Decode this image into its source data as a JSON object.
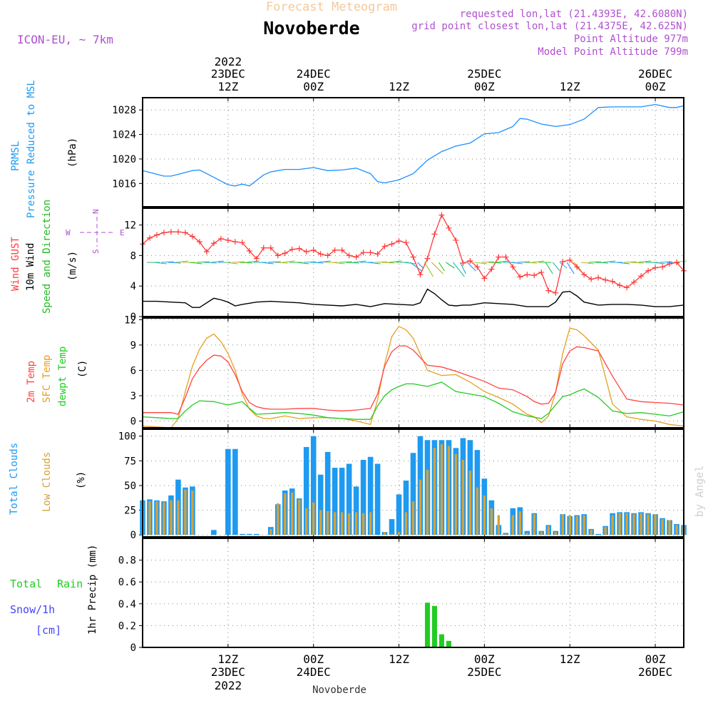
{
  "header": {
    "product_title": "Forecast Meteogram",
    "location": "Novoberde",
    "model": "ICON-EU, ~ 7km",
    "requested_point": "requested lon,lat (21.4393E, 42.6080N)",
    "grid_point": "grid point closest lon,lat (21.4375E, 42.625N)",
    "point_altitude": "Point Altitude 977m",
    "model_altitude": "Model Point Altitude 799m",
    "watermark": "by Angel",
    "footer_location": "Novoberde"
  },
  "colors": {
    "pressure": "#1e90ff",
    "gust": "#ff3b3b",
    "wind": "#000000",
    "dir": "#22bb22",
    "temp2m": "#ff4444",
    "sfc": "#e5a020",
    "dewpt": "#22cc22",
    "total_clouds": "#1e9af0",
    "low_clouds": "#d4a23a",
    "rain": "#22cc22",
    "snow": "#4444ff",
    "header_title": "#f5c89a",
    "info": "#b050d0"
  },
  "time_axis": {
    "top_labels": [
      {
        "line1": "2022",
        "line2": "23DEC",
        "line3": "12Z",
        "h": 12
      },
      {
        "line1": "",
        "line2": "24DEC",
        "line3": "00Z",
        "h": 24
      },
      {
        "line1": "",
        "line2": "",
        "line3": "12Z",
        "h": 36
      },
      {
        "line1": "",
        "line2": "25DEC",
        "line3": "00Z",
        "h": 48
      },
      {
        "line1": "",
        "line2": "",
        "line3": "12Z",
        "h": 60
      },
      {
        "line1": "",
        "line2": "26DEC",
        "line3": "00Z",
        "h": 72
      }
    ],
    "bottom_labels": [
      {
        "line1": "12Z",
        "line2": "23DEC",
        "line3": "2022",
        "h": 12
      },
      {
        "line1": "00Z",
        "line2": "24DEC",
        "line3": "",
        "h": 24
      },
      {
        "line1": "12Z",
        "line2": "",
        "line3": "",
        "h": 36
      },
      {
        "line1": "00Z",
        "line2": "25DEC",
        "line3": "",
        "h": 48
      },
      {
        "line1": "12Z",
        "line2": "",
        "line3": "",
        "h": 60
      },
      {
        "line1": "00Z",
        "line2": "26DEC",
        "line3": "",
        "h": 72
      }
    ]
  },
  "panels": {
    "pressure": {
      "label_a": "PRMSL",
      "label_b": "Pressure Reduced to MSL",
      "unit": "(hPa)",
      "y_ticks": [
        "1016",
        "1020",
        "1024",
        "1028"
      ]
    },
    "wind": {
      "label_gust": "Wind GUST",
      "label_wind": "10m Wind",
      "label_dir": "Speed and Direction",
      "unit": "(m/s)",
      "compass_n": "N",
      "compass_s": "S",
      "compass_w": "W",
      "compass_e": "E",
      "y_ticks": [
        "0",
        "4",
        "8",
        "12"
      ]
    },
    "temperature": {
      "label_t2m": "2m Temp",
      "label_sfc": "SFC Temp",
      "label_dew": "dewpt Temp",
      "unit": "(C)",
      "y_ticks": [
        "0",
        "3",
        "6",
        "9",
        "12"
      ]
    },
    "clouds": {
      "label_total": "Total Clouds",
      "label_low": "Low Clouds",
      "unit": "(%)",
      "y_ticks": [
        "0",
        "25",
        "50",
        "75",
        "100"
      ]
    },
    "precip": {
      "label_total": "Total",
      "label_rain": "Rain",
      "label_snow": "Snow/1h",
      "label_cm": "[cm]",
      "axis_label": "1hr Precip (mm)",
      "y_ticks": [
        "0",
        "0.2",
        "0.4",
        "0.6",
        "0.8"
      ]
    }
  },
  "chart_data": [
    {
      "type": "line",
      "title": "",
      "ylabel": "(hPa)",
      "ylim": [
        1012.2,
        1030.0
      ],
      "x_unit": "hours from 23DEC 00Z",
      "series": [
        {
          "name": "PRMSL",
          "x": [
            0,
            2,
            3,
            4,
            6,
            7,
            8,
            10,
            11,
            12,
            13,
            14,
            15,
            16,
            17,
            18,
            20,
            22,
            24,
            26,
            28,
            30,
            32,
            33,
            34,
            36,
            38,
            40,
            42,
            44,
            46,
            48,
            50,
            52,
            53,
            54,
            56,
            58,
            60,
            62,
            64,
            66,
            68,
            70,
            72,
            74,
            75,
            76
          ],
          "values": [
            1018.1,
            1017.5,
            1017.2,
            1017.2,
            1017.8,
            1018.1,
            1018.2,
            1017.0,
            1016.4,
            1015.8,
            1015.6,
            1015.9,
            1015.6,
            1016.5,
            1017.4,
            1017.9,
            1018.3,
            1018.3,
            1018.6,
            1018.1,
            1018.2,
            1018.5,
            1017.6,
            1016.3,
            1016.1,
            1016.6,
            1017.6,
            1019.8,
            1021.2,
            1022.1,
            1022.6,
            1024.1,
            1024.3,
            1025.3,
            1026.6,
            1026.5,
            1025.7,
            1025.3,
            1025.6,
            1026.5,
            1028.4,
            1028.5,
            1028.5,
            1028.5,
            1028.9,
            1028.4,
            1028.4,
            1028.7
          ]
        }
      ]
    },
    {
      "type": "line",
      "title": "",
      "ylabel": "(m/s)",
      "ylim": [
        0,
        14.2
      ],
      "x_unit": "hours from 23DEC 00Z",
      "series": [
        {
          "name": "Wind GUST",
          "x": [
            0,
            1,
            2,
            3,
            4,
            5,
            6,
            7,
            8,
            9,
            10,
            11,
            12,
            13,
            14,
            15,
            16,
            17,
            18,
            19,
            20,
            21,
            22,
            23,
            24,
            25,
            26,
            27,
            28,
            29,
            30,
            31,
            32,
            33,
            34,
            35,
            36,
            37,
            38,
            39,
            40,
            41,
            42,
            43,
            44,
            45,
            46,
            47,
            48,
            49,
            50,
            51,
            52,
            53,
            54,
            55,
            56,
            57,
            58,
            59,
            60,
            61,
            62,
            63,
            64,
            65,
            66,
            67,
            68,
            69,
            70,
            71,
            72,
            73,
            74,
            75,
            76
          ],
          "values": [
            9.5,
            10.3,
            10.7,
            11.0,
            11.1,
            11.1,
            11.0,
            10.5,
            9.8,
            8.5,
            9.6,
            10.2,
            10.0,
            9.8,
            9.7,
            8.6,
            7.6,
            9.0,
            9.0,
            8.0,
            8.3,
            8.8,
            8.9,
            8.5,
            8.7,
            8.2,
            8.0,
            8.7,
            8.7,
            8.0,
            7.8,
            8.4,
            8.4,
            8.2,
            9.2,
            9.5,
            9.9,
            9.7,
            7.8,
            5.5,
            7.6,
            10.8,
            13.3,
            11.6,
            10.0,
            7.0,
            7.3,
            6.5,
            5.0,
            6.2,
            7.8,
            7.8,
            6.5,
            5.2,
            5.5,
            5.4,
            5.8,
            3.4,
            3.1,
            7.2,
            7.4,
            6.5,
            5.5,
            4.9,
            5.1,
            4.8,
            4.6,
            4.1,
            3.8,
            4.5,
            5.3,
            6.0,
            6.4,
            6.5,
            6.9,
            7.1,
            6.0
          ]
        },
        {
          "name": "10m Wind",
          "x": [
            0,
            2,
            4,
            6,
            7,
            8,
            10,
            11,
            12,
            13,
            14,
            16,
            18,
            20,
            22,
            24,
            26,
            28,
            30,
            32,
            34,
            36,
            38,
            39,
            40,
            41,
            42,
            43,
            44,
            45,
            46,
            48,
            50,
            52,
            54,
            56,
            57,
            58,
            59,
            60,
            61,
            62,
            64,
            66,
            68,
            70,
            72,
            74,
            76
          ],
          "values": [
            2.0,
            2.0,
            1.9,
            1.8,
            1.2,
            1.2,
            2.4,
            2.2,
            1.9,
            1.4,
            1.6,
            1.9,
            2.0,
            1.9,
            1.8,
            1.6,
            1.5,
            1.4,
            1.6,
            1.3,
            1.7,
            1.6,
            1.5,
            1.8,
            3.6,
            3.0,
            2.2,
            1.5,
            1.4,
            1.5,
            1.5,
            1.8,
            1.7,
            1.6,
            1.3,
            1.3,
            1.3,
            1.9,
            3.2,
            3.3,
            2.7,
            1.9,
            1.5,
            1.6,
            1.6,
            1.5,
            1.3,
            1.3,
            1.5
          ]
        }
      ]
    },
    {
      "type": "line",
      "title": "",
      "ylabel": "(C)",
      "ylim": [
        -0.8,
        12.2
      ],
      "x_unit": "hours from 23DEC 00Z",
      "series": [
        {
          "name": "2m Temp",
          "x": [
            0,
            2,
            4,
            5,
            6,
            7,
            8,
            9,
            10,
            11,
            12,
            13,
            14,
            15,
            16,
            17,
            18,
            20,
            22,
            24,
            26,
            28,
            30,
            32,
            33,
            34,
            35,
            36,
            37,
            38,
            40,
            42,
            44,
            46,
            48,
            50,
            52,
            54,
            55,
            56,
            57,
            58,
            59,
            60,
            61,
            62,
            64,
            66,
            68,
            70,
            72,
            74,
            76
          ],
          "values": [
            1.0,
            1.0,
            1.0,
            0.8,
            2.8,
            5.0,
            6.3,
            7.2,
            7.8,
            7.7,
            7.0,
            5.5,
            3.5,
            2.2,
            1.7,
            1.5,
            1.4,
            1.4,
            1.5,
            1.5,
            1.3,
            1.2,
            1.3,
            1.5,
            3.2,
            6.5,
            8.2,
            8.9,
            8.9,
            8.4,
            6.6,
            6.4,
            5.9,
            5.3,
            4.7,
            3.9,
            3.7,
            2.9,
            2.3,
            2.0,
            2.1,
            3.4,
            6.8,
            8.3,
            8.8,
            8.7,
            8.3,
            5.3,
            2.6,
            2.3,
            2.2,
            2.1,
            1.9
          ]
        },
        {
          "name": "SFC Temp",
          "x": [
            0,
            2,
            4,
            5,
            6,
            7,
            8,
            9,
            10,
            11,
            12,
            13,
            14,
            15,
            16,
            17,
            18,
            20,
            22,
            24,
            26,
            28,
            30,
            32,
            33,
            34,
            35,
            36,
            37,
            38,
            40,
            42,
            44,
            46,
            48,
            50,
            52,
            54,
            55,
            56,
            57,
            58,
            59,
            60,
            61,
            62,
            64,
            66,
            68,
            70,
            72,
            74,
            76
          ],
          "values": [
            -0.6,
            -0.7,
            -0.8,
            0.3,
            3.5,
            6.5,
            8.5,
            9.8,
            10.3,
            9.4,
            8.0,
            6.0,
            3.2,
            1.4,
            0.6,
            0.3,
            0.3,
            0.6,
            0.3,
            0.4,
            0.4,
            0.3,
            0.0,
            -0.4,
            2.5,
            6.8,
            10.0,
            11.2,
            10.8,
            9.8,
            6.0,
            5.4,
            5.5,
            4.6,
            3.5,
            2.8,
            2.0,
            0.8,
            0.5,
            -0.2,
            0.6,
            3.4,
            8.0,
            11.0,
            10.8,
            10.1,
            8.4,
            2.0,
            0.5,
            0.2,
            0.0,
            -0.4,
            -0.6
          ]
        },
        {
          "name": "dewpt Temp",
          "x": [
            0,
            2,
            4,
            5,
            6,
            7,
            8,
            10,
            12,
            13,
            14,
            15,
            16,
            18,
            20,
            22,
            24,
            26,
            28,
            30,
            32,
            33,
            34,
            35,
            36,
            37,
            38,
            40,
            42,
            44,
            46,
            48,
            50,
            52,
            54,
            56,
            57,
            58,
            59,
            60,
            61,
            62,
            64,
            66,
            68,
            70,
            72,
            74,
            76
          ],
          "values": [
            0.5,
            0.4,
            0.3,
            0.3,
            1.2,
            1.9,
            2.4,
            2.3,
            1.9,
            2.1,
            2.3,
            1.5,
            0.8,
            0.9,
            1.0,
            0.9,
            0.7,
            0.4,
            0.3,
            0.2,
            0.2,
            1.8,
            3.0,
            3.7,
            4.1,
            4.4,
            4.4,
            4.1,
            4.6,
            3.5,
            3.2,
            2.9,
            2.1,
            1.1,
            0.6,
            0.3,
            0.9,
            1.9,
            2.9,
            3.1,
            3.5,
            3.8,
            2.8,
            1.2,
            0.9,
            1.0,
            0.8,
            0.6,
            1.1
          ]
        }
      ]
    },
    {
      "type": "bar",
      "title": "",
      "ylabel": "(%)",
      "ylim": [
        -2,
        107
      ],
      "x_unit": "hours from 23DEC 00Z",
      "x": [
        0,
        1,
        2,
        3,
        4,
        5,
        6,
        7,
        8,
        9,
        10,
        11,
        12,
        13,
        14,
        15,
        16,
        17,
        18,
        19,
        20,
        21,
        22,
        23,
        24,
        25,
        26,
        27,
        28,
        29,
        30,
        31,
        32,
        33,
        34,
        35,
        36,
        37,
        38,
        39,
        40,
        41,
        42,
        43,
        44,
        45,
        46,
        47,
        48,
        49,
        50,
        51,
        52,
        53,
        54,
        55,
        56,
        57,
        58,
        59,
        60,
        61,
        62,
        63,
        64,
        65,
        66,
        67,
        68,
        69,
        70,
        71,
        72,
        73,
        74,
        75,
        76
      ],
      "series": [
        {
          "name": "Total Clouds",
          "values": [
            35,
            36,
            35,
            34,
            40,
            56,
            48,
            49,
            0,
            0,
            5,
            0,
            87,
            87,
            1,
            1,
            1,
            0,
            8,
            31,
            45,
            47,
            37,
            89,
            100,
            61,
            84,
            68,
            68,
            72,
            49,
            76,
            79,
            72,
            3,
            16,
            41,
            55,
            83,
            100,
            96,
            96,
            96,
            96,
            88,
            98,
            96,
            86,
            57,
            35,
            10,
            2,
            27,
            28,
            4,
            22,
            4,
            10,
            4,
            21,
            19,
            20,
            21,
            6,
            1,
            9,
            22,
            23,
            23,
            22,
            23,
            22,
            21,
            17,
            15,
            11,
            10
          ]
        },
        {
          "name": "Low Clouds",
          "values": [
            35,
            34,
            34,
            33,
            35,
            35,
            46,
            45,
            0,
            0,
            0,
            0,
            0,
            0,
            0,
            0,
            0,
            0,
            6,
            32,
            42,
            43,
            36,
            27,
            33,
            25,
            24,
            23,
            23,
            22,
            23,
            22,
            23,
            0,
            3,
            1,
            3,
            23,
            34,
            56,
            66,
            88,
            92,
            90,
            82,
            76,
            65,
            48,
            40,
            27,
            20,
            1,
            20,
            24,
            2,
            21,
            3,
            9,
            3,
            21,
            20,
            19,
            20,
            5,
            0,
            8,
            20,
            22,
            22,
            21,
            22,
            21,
            21,
            16,
            15,
            10,
            9
          ]
        }
      ]
    },
    {
      "type": "bar",
      "title": "",
      "ylabel": "1hr Precip (mm)",
      "ylim": [
        0,
        1.0
      ],
      "x_unit": "hours from 23DEC 00Z",
      "x": [
        40,
        41,
        42,
        43
      ],
      "series": [
        {
          "name": "Rain",
          "values": [
            0.41,
            0.38,
            0.12,
            0.06
          ]
        }
      ]
    }
  ]
}
